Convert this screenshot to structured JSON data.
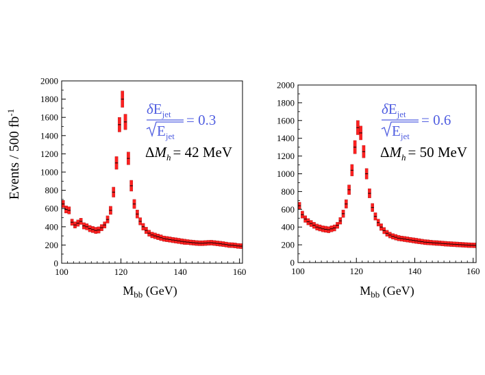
{
  "chart_data": [
    {
      "type": "bar",
      "title": "",
      "xlabel_main": "M",
      "xlabel_sub": "bb",
      "xlabel_unit": " (GeV)",
      "ylabel": "Events / 500 fb",
      "ylabel_sup": "-1",
      "xlim": [
        100,
        161
      ],
      "ylim": [
        0,
        2000
      ],
      "xticks": [
        100,
        120,
        140,
        160
      ],
      "yticks": [
        0,
        200,
        400,
        600,
        800,
        1000,
        1200,
        1400,
        1600,
        1800,
        2000
      ],
      "annotation_resolution": {
        "numerator_delta": "δ",
        "numerator_text": "E",
        "numerator_sub": "jet",
        "denominator_text": "E",
        "denominator_sub": "jet",
        "value": "= 0.3"
      },
      "annotation_mass": {
        "delta": "Δ",
        "symbol": "M",
        "sub": "h",
        "value": "= 42 MeV"
      },
      "fill_color": "#ff2020",
      "bin_width": 1,
      "x": [
        100,
        101,
        102,
        103,
        104,
        105,
        106,
        107,
        108,
        109,
        110,
        111,
        112,
        113,
        114,
        115,
        116,
        117,
        118,
        119,
        120,
        121,
        122,
        123,
        124,
        125,
        126,
        127,
        128,
        129,
        130,
        131,
        132,
        133,
        134,
        135,
        136,
        137,
        138,
        139,
        140,
        141,
        142,
        143,
        144,
        145,
        146,
        147,
        148,
        149,
        150,
        151,
        152,
        153,
        154,
        155,
        156,
        157,
        158,
        159,
        160
      ],
      "values": [
        650,
        590,
        580,
        450,
        420,
        440,
        460,
        410,
        400,
        380,
        370,
        360,
        365,
        390,
        420,
        480,
        580,
        780,
        1100,
        1520,
        1800,
        1550,
        1150,
        850,
        650,
        540,
        460,
        400,
        360,
        330,
        310,
        300,
        290,
        280,
        270,
        265,
        260,
        255,
        250,
        245,
        240,
        235,
        232,
        228,
        225,
        222,
        220,
        220,
        222,
        224,
        225,
        222,
        218,
        214,
        210,
        205,
        200,
        198,
        195,
        190,
        188
      ],
      "band_half_width": [
        40,
        40,
        40,
        35,
        35,
        35,
        35,
        35,
        35,
        35,
        35,
        35,
        35,
        35,
        35,
        40,
        45,
        55,
        70,
        80,
        90,
        85,
        70,
        60,
        50,
        45,
        40,
        38,
        36,
        34,
        32,
        32,
        32,
        32,
        30,
        30,
        30,
        30,
        30,
        30,
        30,
        30,
        28,
        28,
        28,
        28,
        28,
        28,
        28,
        28,
        28,
        28,
        28,
        28,
        28,
        28,
        28,
        28,
        28,
        28,
        28
      ]
    },
    {
      "type": "bar",
      "title": "",
      "xlabel_main": "M",
      "xlabel_sub": "bb",
      "xlabel_unit": " (GeV)",
      "ylabel": "",
      "xlim": [
        100,
        161
      ],
      "ylim": [
        0,
        2000
      ],
      "xticks": [
        100,
        120,
        140,
        160
      ],
      "yticks": [
        0,
        200,
        400,
        600,
        800,
        1000,
        1200,
        1400,
        1600,
        1800,
        2000
      ],
      "annotation_resolution": {
        "numerator_delta": "δ",
        "numerator_text": "E",
        "numerator_sub": "jet",
        "denominator_text": "E",
        "denominator_sub": "jet",
        "value": "= 0.6"
      },
      "annotation_mass": {
        "delta": "Δ",
        "symbol": "M",
        "sub": "h",
        "value": "= 50 MeV"
      },
      "fill_color": "#ff2020",
      "bin_width": 1,
      "x": [
        100,
        101,
        102,
        103,
        104,
        105,
        106,
        107,
        108,
        109,
        110,
        111,
        112,
        113,
        114,
        115,
        116,
        117,
        118,
        119,
        120,
        121,
        122,
        123,
        124,
        125,
        126,
        127,
        128,
        129,
        130,
        131,
        132,
        133,
        134,
        135,
        136,
        137,
        138,
        139,
        140,
        141,
        142,
        143,
        144,
        145,
        146,
        147,
        148,
        149,
        150,
        151,
        152,
        153,
        154,
        155,
        156,
        157,
        158,
        159,
        160
      ],
      "values": [
        640,
        540,
        490,
        460,
        440,
        420,
        400,
        390,
        380,
        375,
        370,
        380,
        390,
        420,
        470,
        550,
        660,
        820,
        1040,
        1300,
        1520,
        1460,
        1250,
        1000,
        780,
        620,
        520,
        450,
        400,
        360,
        330,
        310,
        295,
        285,
        275,
        270,
        265,
        260,
        255,
        250,
        245,
        240,
        235,
        230,
        228,
        225,
        222,
        220,
        218,
        215,
        212,
        210,
        208,
        206,
        204,
        202,
        200,
        198,
        196,
        195,
        194
      ],
      "band_half_width": [
        40,
        40,
        38,
        36,
        35,
        35,
        35,
        35,
        35,
        35,
        35,
        35,
        35,
        35,
        38,
        42,
        48,
        55,
        65,
        75,
        80,
        78,
        70,
        60,
        52,
        46,
        42,
        40,
        38,
        36,
        34,
        33,
        32,
        32,
        31,
        30,
        30,
        30,
        30,
        30,
        30,
        30,
        29,
        29,
        29,
        28,
        28,
        28,
        28,
        28,
        28,
        28,
        28,
        28,
        28,
        28,
        28,
        28,
        28,
        28,
        28
      ]
    }
  ]
}
